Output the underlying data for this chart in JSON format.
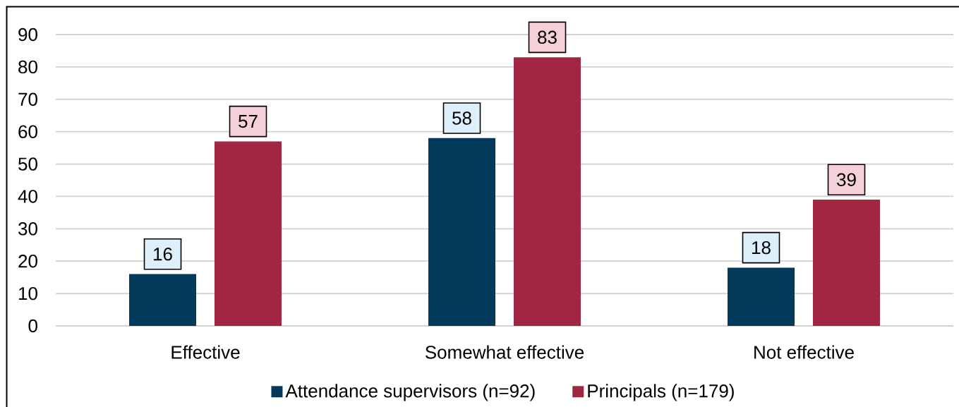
{
  "chart_data": {
    "type": "bar",
    "categories": [
      "Effective",
      "Somewhat effective",
      "Not effective"
    ],
    "series": [
      {
        "name": "Attendance supervisors (n=92)",
        "color": "#033a5c",
        "values": [
          16,
          58,
          18
        ]
      },
      {
        "name": "Principals (n=179)",
        "color": "#a02642",
        "values": [
          57,
          83,
          39
        ]
      }
    ],
    "ylim": [
      0,
      90
    ],
    "yticks": [
      0,
      10,
      20,
      30,
      40,
      50,
      60,
      70,
      80,
      90
    ],
    "grid": "y",
    "legend": "bottom",
    "data_labels": true
  }
}
